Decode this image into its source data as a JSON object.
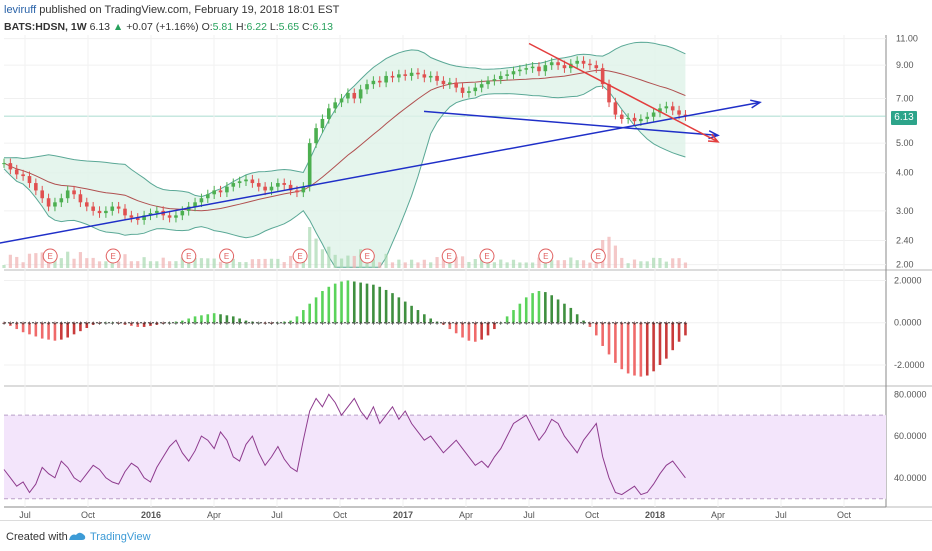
{
  "header": {
    "author": "leviruff",
    "published": "published on TradingView.com, February 19, 2018 18:01 EST",
    "symbol": "BATS:HDSN, 1W",
    "last": "6.13",
    "change": "+0.07 (+1.16%)",
    "o_label": "O:",
    "o": "5.81",
    "h_label": "H:",
    "h": "6.22",
    "l_label": "L:",
    "l": "5.65",
    "c_label": "C:",
    "c": "6.13"
  },
  "footer": {
    "created_with": "Created with",
    "brand": "TradingView"
  },
  "colors": {
    "bull": "#4caf50",
    "bear": "#e05050",
    "bands": "#5aa896",
    "band_fill": "#dff2e8",
    "basis": "#b05050",
    "trendline_blue": "#1f2fc8",
    "trendline_red": "#e33d3d",
    "rsi_line": "#8e3b8e",
    "rsi_fill": "#f3e5fb",
    "last_label": "#2da48a"
  },
  "chart_data": [
    {
      "type": "candlestick",
      "title": "",
      "ylabel": "",
      "y_scale": "log",
      "y_ticks": [
        "11.00",
        "9.00",
        "7.00",
        "6.13",
        "5.00",
        "4.00",
        "3.00",
        "2.40",
        "2.00"
      ],
      "x_ticks": [
        "Jul",
        "Oct",
        "2016",
        "Apr",
        "Jul",
        "Oct",
        "2017",
        "Apr",
        "Jul",
        "Oct",
        "2018",
        "Apr",
        "Jul",
        "Oct"
      ],
      "last_price": 6.13,
      "earnings_markers": [
        "E",
        "E",
        "E",
        "E",
        "E",
        "E",
        "E",
        "E",
        "E",
        "E"
      ],
      "indicators": [
        "Bollinger Bands",
        "Volume"
      ],
      "trendlines": [
        {
          "name": "",
          "color": "blue",
          "from": [
            "2015-05",
            2.3
          ],
          "to": [
            "2018-06",
            6.8
          ]
        },
        {
          "name": "",
          "color": "blue",
          "from": [
            "2017-02",
            6.35
          ],
          "to": [
            "2018-04",
            5.3
          ]
        },
        {
          "name": "",
          "color": "red",
          "from": [
            "2017-07",
            10.6
          ],
          "to": [
            "2018-04",
            5.05
          ]
        }
      ],
      "approx_weekly_close": [
        4.3,
        4.1,
        3.95,
        3.9,
        3.7,
        3.5,
        3.3,
        3.1,
        3.2,
        3.3,
        3.5,
        3.4,
        3.2,
        3.1,
        3.0,
        2.95,
        3.0,
        3.1,
        3.05,
        2.9,
        2.85,
        2.8,
        2.9,
        2.95,
        3.0,
        2.9,
        2.85,
        2.9,
        3.0,
        3.1,
        3.2,
        3.3,
        3.4,
        3.5,
        3.45,
        3.6,
        3.7,
        3.75,
        3.8,
        3.7,
        3.6,
        3.5,
        3.6,
        3.7,
        3.65,
        3.5,
        3.45,
        3.6,
        5.0,
        5.6,
        6.0,
        6.5,
        6.8,
        7.0,
        7.3,
        7.0,
        7.5,
        7.8,
        8.0,
        7.9,
        8.3,
        8.2,
        8.4,
        8.3,
        8.5,
        8.4,
        8.2,
        8.3,
        8.0,
        7.8,
        7.9,
        7.6,
        7.3,
        7.4,
        7.6,
        7.8,
        8.0,
        8.1,
        8.3,
        8.4,
        8.6,
        8.7,
        8.8,
        8.9,
        8.6,
        9.0,
        9.2,
        9.0,
        8.8,
        9.1,
        9.3,
        9.1,
        9.0,
        8.8,
        7.8,
        6.8,
        6.2,
        6.0,
        6.05,
        5.9,
        6.0,
        6.1,
        6.3,
        6.5,
        6.6,
        6.4,
        6.2,
        6.13
      ]
    },
    {
      "type": "bar",
      "title": "",
      "indicator": "Histogram oscillator",
      "y_ticks": [
        "2.0000",
        "0.0000",
        "-2.0000"
      ],
      "ylim": [
        -2.9,
        2.4
      ],
      "values": [
        -0.05,
        -0.15,
        -0.3,
        -0.45,
        -0.55,
        -0.65,
        -0.75,
        -0.8,
        -0.85,
        -0.8,
        -0.7,
        -0.55,
        -0.4,
        -0.25,
        -0.1,
        -0.05,
        0,
        0,
        -0.05,
        -0.1,
        -0.15,
        -0.2,
        -0.2,
        -0.15,
        -0.1,
        -0.05,
        0,
        0.05,
        0.1,
        0.2,
        0.3,
        0.35,
        0.4,
        0.45,
        0.4,
        0.35,
        0.3,
        0.2,
        0.1,
        0.05,
        0,
        -0.05,
        -0.05,
        0,
        0.05,
        0.1,
        0.3,
        0.6,
        0.9,
        1.2,
        1.5,
        1.7,
        1.85,
        1.95,
        2.0,
        1.95,
        1.9,
        1.85,
        1.8,
        1.7,
        1.55,
        1.4,
        1.2,
        1.0,
        0.8,
        0.6,
        0.4,
        0.2,
        0.05,
        -0.1,
        -0.3,
        -0.5,
        -0.7,
        -0.85,
        -0.9,
        -0.8,
        -0.6,
        -0.3,
        0,
        0.3,
        0.6,
        0.9,
        1.2,
        1.4,
        1.5,
        1.45,
        1.3,
        1.1,
        0.9,
        0.7,
        0.4,
        0.1,
        -0.2,
        -0.6,
        -1.1,
        -1.5,
        -1.9,
        -2.2,
        -2.4,
        -2.5,
        -2.55,
        -2.5,
        -2.3,
        -2.0,
        -1.7,
        -1.3,
        -0.9,
        -0.6
      ]
    },
    {
      "type": "line",
      "title": "",
      "indicator": "RSI",
      "y_ticks": [
        "80.0000",
        "60.0000",
        "40.0000"
      ],
      "ylim": [
        27,
        83
      ],
      "band": [
        30,
        70
      ],
      "values": [
        44,
        40,
        36,
        38,
        33,
        37,
        45,
        42,
        40,
        48,
        45,
        40,
        38,
        42,
        46,
        44,
        40,
        38,
        37,
        43,
        47,
        45,
        40,
        38,
        45,
        50,
        55,
        58,
        52,
        48,
        53,
        60,
        58,
        54,
        62,
        58,
        50,
        48,
        56,
        60,
        52,
        46,
        50,
        55,
        49,
        45,
        43,
        58,
        72,
        78,
        74,
        80,
        76,
        70,
        74,
        78,
        72,
        68,
        74,
        66,
        70,
        74,
        68,
        72,
        66,
        62,
        58,
        60,
        56,
        52,
        55,
        58,
        54,
        50,
        46,
        48,
        45,
        50,
        54,
        60,
        66,
        68,
        70,
        64,
        58,
        62,
        68,
        66,
        60,
        56,
        52,
        58,
        62,
        66,
        50,
        40,
        33,
        32,
        34,
        36,
        32,
        33,
        37,
        42,
        46,
        48,
        44,
        40,
        43
      ]
    }
  ]
}
